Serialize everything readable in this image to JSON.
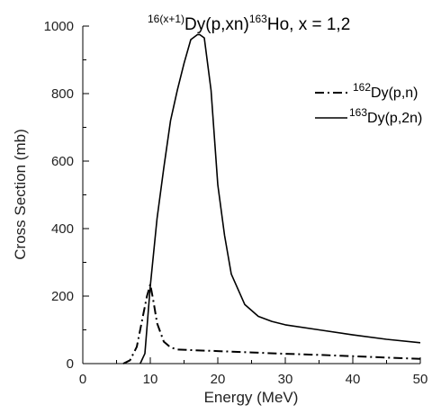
{
  "chart_data": {
    "type": "line",
    "title": {
      "sup1": "16(x+1)",
      "main1": "Dy(p,xn)",
      "sup2": "163",
      "main2": "Ho, x = 1,2"
    },
    "xlabel": "Energy (MeV)",
    "ylabel": "Cross Section (mb)",
    "xlim": [
      0,
      50
    ],
    "ylim": [
      0,
      1000
    ],
    "xticks": [
      0,
      10,
      20,
      30,
      40,
      50
    ],
    "yticks": [
      0,
      200,
      400,
      600,
      800,
      1000
    ],
    "grid": false,
    "legend_position": "top-right",
    "series": [
      {
        "name": "162Dy(p,n)",
        "legend": {
          "sup": "162",
          "main": "Dy(p,n)"
        },
        "style": "dash-dot",
        "color": "#000000",
        "x": [
          6,
          7,
          8,
          9,
          9.5,
          10,
          10.5,
          11,
          12,
          13,
          14,
          16,
          20,
          25,
          30,
          35,
          40,
          45,
          50
        ],
        "y": [
          0,
          10,
          50,
          150,
          200,
          235,
          180,
          120,
          65,
          48,
          42,
          40,
          37,
          33,
          29,
          26,
          22,
          18,
          14
        ]
      },
      {
        "name": "163Dy(p,2n)",
        "legend": {
          "sup": "163",
          "main": "Dy(p,2n)"
        },
        "style": "solid",
        "color": "#000000",
        "x": [
          8.5,
          9.2,
          10,
          11,
          12,
          13,
          14,
          15,
          16,
          17,
          17.3,
          18,
          19,
          20,
          21,
          22,
          24,
          26,
          28,
          30,
          35,
          40,
          45,
          50
        ],
        "y": [
          0,
          30,
          230,
          430,
          580,
          720,
          810,
          890,
          960,
          975,
          975,
          965,
          810,
          530,
          380,
          265,
          175,
          140,
          125,
          115,
          100,
          85,
          72,
          62
        ]
      }
    ]
  }
}
